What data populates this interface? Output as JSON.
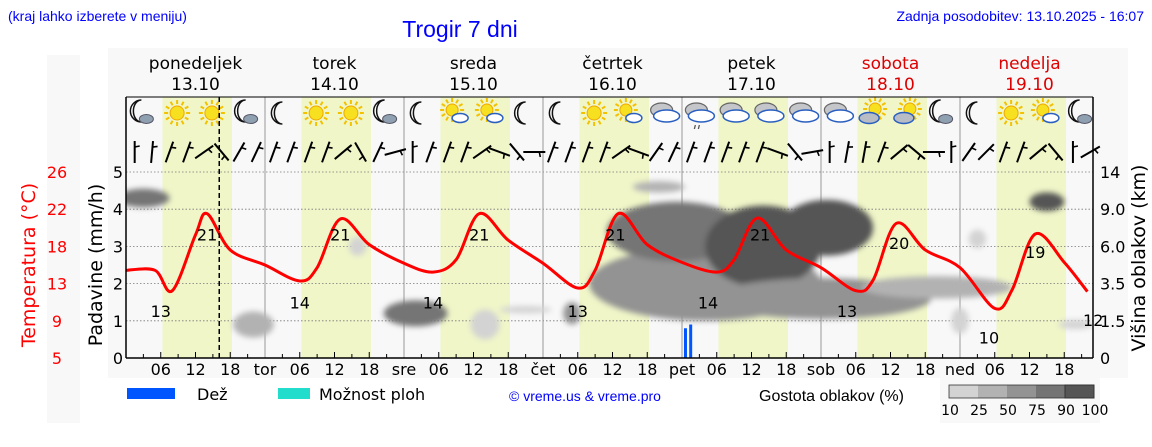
{
  "header": {
    "menu_hint": "(kraj lahko izberete v meniju)",
    "title": "Trogir 7 dni",
    "updated": "Zadnja posodobitev: 13.10.2025 - 16:07"
  },
  "colors": {
    "link_blue": "#0000ff",
    "temperature": "#ff0000",
    "weekend": "#dd0000",
    "daylight": "#f0f6c8",
    "rain": "#0055ff",
    "showers": "#22ddcc"
  },
  "days": [
    {
      "name": "ponedeljek",
      "date": "13.10",
      "weekend": false
    },
    {
      "name": "torek",
      "date": "14.10",
      "weekend": false
    },
    {
      "name": "sreda",
      "date": "15.10",
      "weekend": false
    },
    {
      "name": "četrtek",
      "date": "16.10",
      "weekend": false
    },
    {
      "name": "petek",
      "date": "17.10",
      "weekend": false
    },
    {
      "name": "sobota",
      "date": "18.10",
      "weekend": true
    },
    {
      "name": "nedelja",
      "date": "19.10",
      "weekend": true
    }
  ],
  "weather_icons": [
    [
      "moon-cloud",
      "sun",
      "sun",
      "moon-cloud"
    ],
    [
      "moon",
      "sun",
      "sun",
      "moon-cloud"
    ],
    [
      "moon",
      "sun-cloud",
      "sun-cloud",
      "moon"
    ],
    [
      "moon",
      "sun",
      "sun-cloud",
      "cloud"
    ],
    [
      "cloud-drizzle",
      "cloud",
      "cloud",
      "cloud"
    ],
    [
      "cloud",
      "sun-cloud-grey",
      "sun-cloud-grey",
      "moon-cloud"
    ],
    [
      "moon",
      "sun",
      "sun-cloud",
      "moon-cloud"
    ]
  ],
  "wind_directions_deg": [
    0,
    5,
    20,
    20,
    55,
    140,
    30,
    25,
    20,
    20,
    20,
    20,
    50,
    150,
    25,
    75,
    0,
    20,
    20,
    20,
    55,
    110,
    140,
    90,
    20,
    20,
    20,
    20,
    55,
    110,
    35,
    25,
    20,
    20,
    20,
    20,
    20,
    110,
    140,
    80,
    0,
    10,
    10,
    20,
    50,
    130,
    90,
    0,
    35,
    45,
    20,
    20,
    50,
    140,
    0,
    60
  ],
  "chart_data": {
    "type": "line",
    "title": "Trogir 7 dni",
    "x_unit": "hours from 13.10 00:00",
    "xlim": [
      0,
      166
    ],
    "x_ticks": {
      "hour_labels": [
        "06",
        "12",
        "18"
      ],
      "day_labels": [
        "tor",
        "sre",
        "čet",
        "pet",
        "sob",
        "ned"
      ]
    },
    "now_hour": 16.1,
    "daylight_hours": [
      6.3,
      18.3
    ],
    "left_axis_temperature": {
      "label": "Temperatura (°C)",
      "ticks": [
        "26",
        "22",
        "18",
        "13",
        "9",
        "5"
      ],
      "range": [
        5,
        26
      ]
    },
    "left_axis_precip": {
      "label": "Padavine (mm/h)",
      "ticks": [
        "5",
        "4",
        "3",
        "2",
        "1",
        "0"
      ],
      "range": [
        0,
        5
      ]
    },
    "right_axis_cloud": {
      "label": "Višina oblakov (km)",
      "ticks": [
        "14",
        "9.0",
        "6.0",
        "3.5",
        "1.5",
        "0"
      ]
    },
    "temperature": {
      "name": "Temperatura",
      "hours": [
        0,
        5,
        8,
        12,
        14,
        18,
        24,
        30,
        33,
        37,
        42,
        48,
        53,
        57,
        61,
        66,
        72,
        78,
        81,
        85,
        90,
        96,
        102,
        105,
        109,
        114,
        120,
        126,
        129,
        133,
        138,
        144,
        150,
        153,
        157,
        162,
        166
      ],
      "values": [
        14.9,
        14.9,
        12.6,
        18.9,
        21.3,
        17.2,
        15.5,
        13.7,
        15.2,
        20.7,
        17.8,
        15.7,
        14.7,
        16.1,
        21.3,
        18.3,
        15.7,
        12.9,
        14.9,
        21.3,
        17.8,
        15.8,
        14.7,
        16.1,
        20.8,
        17.2,
        15.2,
        12.6,
        13.8,
        20.2,
        17.2,
        15.2,
        10.6,
        12.7,
        19.0,
        15.8,
        12.5
      ]
    },
    "temperature_labels": [
      {
        "hour": 6,
        "text": "13",
        "kind": "min"
      },
      {
        "hour": 14,
        "text": "21",
        "kind": "max"
      },
      {
        "hour": 30,
        "text": "14",
        "kind": "min"
      },
      {
        "hour": 37,
        "text": "21",
        "kind": "max"
      },
      {
        "hour": 53,
        "text": "14",
        "kind": "min"
      },
      {
        "hour": 61,
        "text": "21",
        "kind": "max"
      },
      {
        "hour": 78,
        "text": "13",
        "kind": "min"
      },
      {
        "hour": 84.5,
        "text": "21",
        "kind": "max"
      },
      {
        "hour": 100.5,
        "text": "14",
        "kind": "min"
      },
      {
        "hour": 109.5,
        "text": "21",
        "kind": "max"
      },
      {
        "hour": 124.5,
        "text": "13",
        "kind": "min"
      },
      {
        "hour": 133.5,
        "text": "20",
        "kind": "max"
      },
      {
        "hour": 149,
        "text": "10",
        "kind": "min"
      },
      {
        "hour": 157,
        "text": "19",
        "kind": "max"
      },
      {
        "hour": 167,
        "text": "12",
        "kind": "min"
      }
    ],
    "precipitation": {
      "name": "Dež",
      "bars": [
        {
          "hour": 96.6,
          "value": 0.8
        },
        {
          "hour": 97.5,
          "value": 0.9
        }
      ]
    },
    "cloud_density": {
      "legend_label": "Gostota oblakov (%)",
      "levels": [
        "10",
        "25",
        "50",
        "75",
        "90",
        "100"
      ],
      "level_colors": [
        "#d3d3d3",
        "#b2b2b2",
        "#939393",
        "#747474",
        "#555555"
      ],
      "blobs": [
        {
          "hour": 3,
          "level": 4.3,
          "span_h": 9,
          "span_l": 0.5,
          "density": 75
        },
        {
          "hour": 22,
          "level": 0.9,
          "span_h": 7,
          "span_l": 0.7,
          "density": 25
        },
        {
          "hour": 40,
          "level": 3.0,
          "span_h": 3,
          "span_l": 0.5,
          "density": 10
        },
        {
          "hour": 50,
          "level": 1.2,
          "span_h": 11,
          "span_l": 0.7,
          "density": 75
        },
        {
          "hour": 62,
          "level": 0.9,
          "span_h": 5,
          "span_l": 0.8,
          "density": 10
        },
        {
          "hour": 69,
          "level": 1.3,
          "span_h": 9,
          "span_l": 0.2,
          "density": 10
        },
        {
          "hour": 77,
          "level": 1.2,
          "span_h": 3,
          "span_l": 0.6,
          "density": 50
        },
        {
          "hour": 92,
          "level": 4.6,
          "span_h": 9,
          "span_l": 0.3,
          "density": 25
        },
        {
          "hour": 100,
          "level": 2.0,
          "span_h": 40,
          "span_l": 2.0,
          "density": 50
        },
        {
          "hour": 95,
          "level": 3.4,
          "span_h": 24,
          "span_l": 1.6,
          "density": 75
        },
        {
          "hour": 110,
          "level": 3.0,
          "span_h": 20,
          "span_l": 2.2,
          "density": 90
        },
        {
          "hour": 121,
          "level": 3.5,
          "span_h": 16,
          "span_l": 1.5,
          "density": 90
        },
        {
          "hour": 120,
          "level": 1.6,
          "span_h": 38,
          "span_l": 1.1,
          "density": 50
        },
        {
          "hour": 140,
          "level": 1.9,
          "span_h": 26,
          "span_l": 0.6,
          "density": 25
        },
        {
          "hour": 147,
          "level": 3.2,
          "span_h": 3,
          "span_l": 0.5,
          "density": 10
        },
        {
          "hour": 144,
          "level": 1.0,
          "span_h": 3,
          "span_l": 0.7,
          "density": 10
        },
        {
          "hour": 159,
          "level": 4.2,
          "span_h": 6,
          "span_l": 0.5,
          "density": 90
        },
        {
          "hour": 164,
          "level": 0.9,
          "span_h": 6,
          "span_l": 0.25,
          "density": 10
        }
      ]
    }
  },
  "legend": {
    "rain": "Dež",
    "showers": "Možnost ploh",
    "copyright": "© vreme.us & vreme.pro",
    "cloud_density": "Gostota oblakov (%)"
  }
}
